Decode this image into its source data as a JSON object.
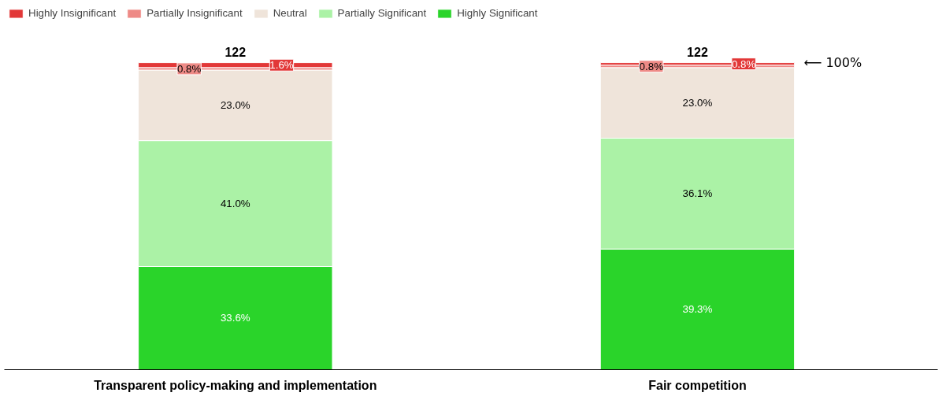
{
  "chart_data": {
    "type": "bar",
    "stacked": true,
    "categories": [
      "Transparent policy-making and implementation",
      "Fair competition"
    ],
    "series": [
      {
        "name": "Highly Significant",
        "color": "#2ad42a",
        "values": [
          33.6,
          39.3
        ],
        "value_labels": [
          "33.6%",
          "39.3%"
        ]
      },
      {
        "name": "Partially Significant",
        "color": "#abf2a6",
        "values": [
          41.0,
          36.1
        ],
        "value_labels": [
          "41.0%",
          "36.1%"
        ]
      },
      {
        "name": "Neutral",
        "color": "#efe4da",
        "values": [
          23.0,
          23.0
        ],
        "value_labels": [
          "23.0%",
          "23.0%"
        ]
      },
      {
        "name": "Partially Insignificant",
        "color": "#ee8a86",
        "values": [
          0.8,
          0.8
        ],
        "value_labels": [
          "0.8%",
          "0.8%"
        ]
      },
      {
        "name": "Highly Insignificant",
        "color": "#e23838",
        "values": [
          1.6,
          0.8
        ],
        "value_labels": [
          "1.6%",
          "0.8%"
        ]
      }
    ],
    "tick_labels": "x",
    "legend": "top left",
    "annotations": [
      "122",
      "122",
      "⟵ 100%"
    ]
  }
}
